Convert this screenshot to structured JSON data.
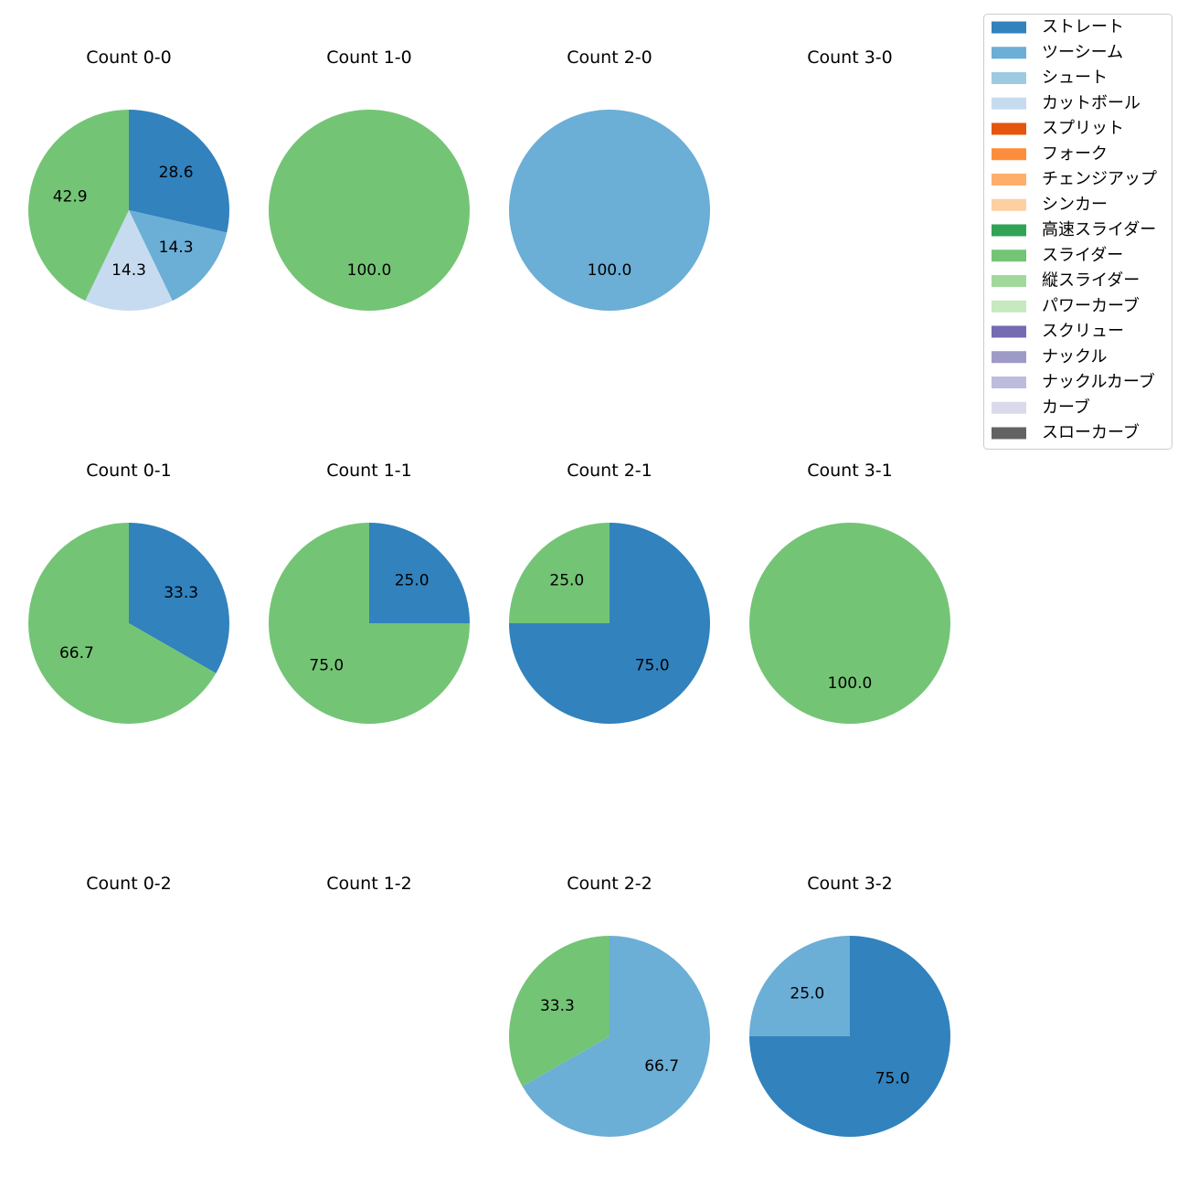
{
  "chart_data": {
    "type": "pie",
    "legend": {
      "placement": "top-right",
      "entries": [
        {
          "label": "ストレート",
          "color": "#3182bd"
        },
        {
          "label": "ツーシーム",
          "color": "#6baed6"
        },
        {
          "label": "シュート",
          "color": "#9ecae1"
        },
        {
          "label": "カットボール",
          "color": "#c6dbef"
        },
        {
          "label": "スプリット",
          "color": "#e6550d"
        },
        {
          "label": "フォーク",
          "color": "#fd8d3c"
        },
        {
          "label": "チェンジアップ",
          "color": "#fdae6b"
        },
        {
          "label": "シンカー",
          "color": "#fdd0a2"
        },
        {
          "label": "高速スライダー",
          "color": "#31a354"
        },
        {
          "label": "スライダー",
          "color": "#74c476"
        },
        {
          "label": "縦スライダー",
          "color": "#a1d99b"
        },
        {
          "label": "パワーカーブ",
          "color": "#c7e9c0"
        },
        {
          "label": "スクリュー",
          "color": "#756bb1"
        },
        {
          "label": "ナックル",
          "color": "#9e9ac8"
        },
        {
          "label": "ナックルカーブ",
          "color": "#bcbddc"
        },
        {
          "label": "カーブ",
          "color": "#dadaeb"
        },
        {
          "label": "スローカーブ",
          "color": "#636363"
        }
      ]
    },
    "charts": [
      {
        "title": "Count 0-0",
        "slices": [
          {
            "pitch": "ストレート",
            "value": 28.6
          },
          {
            "pitch": "ツーシーム",
            "value": 14.3
          },
          {
            "pitch": "カットボール",
            "value": 14.3
          },
          {
            "pitch": "スライダー",
            "value": 42.9
          }
        ]
      },
      {
        "title": "Count 1-0",
        "slices": [
          {
            "pitch": "スライダー",
            "value": 100.0
          }
        ]
      },
      {
        "title": "Count 2-0",
        "slices": [
          {
            "pitch": "ツーシーム",
            "value": 100.0
          }
        ]
      },
      {
        "title": "Count 3-0",
        "slices": []
      },
      {
        "title": "Count 0-1",
        "slices": [
          {
            "pitch": "ストレート",
            "value": 33.3
          },
          {
            "pitch": "スライダー",
            "value": 66.7
          }
        ]
      },
      {
        "title": "Count 1-1",
        "slices": [
          {
            "pitch": "ストレート",
            "value": 25.0
          },
          {
            "pitch": "スライダー",
            "value": 75.0
          }
        ]
      },
      {
        "title": "Count 2-1",
        "slices": [
          {
            "pitch": "ストレート",
            "value": 75.0
          },
          {
            "pitch": "スライダー",
            "value": 25.0
          }
        ]
      },
      {
        "title": "Count 3-1",
        "slices": [
          {
            "pitch": "スライダー",
            "value": 100.0
          }
        ]
      },
      {
        "title": "Count 0-2",
        "slices": []
      },
      {
        "title": "Count 1-2",
        "slices": []
      },
      {
        "title": "Count 2-2",
        "slices": [
          {
            "pitch": "ツーシーム",
            "value": 66.7
          },
          {
            "pitch": "スライダー",
            "value": 33.3
          }
        ]
      },
      {
        "title": "Count 3-2",
        "slices": [
          {
            "pitch": "ストレート",
            "value": 75.0
          },
          {
            "pitch": "ツーシーム",
            "value": 25.0
          }
        ]
      }
    ]
  }
}
